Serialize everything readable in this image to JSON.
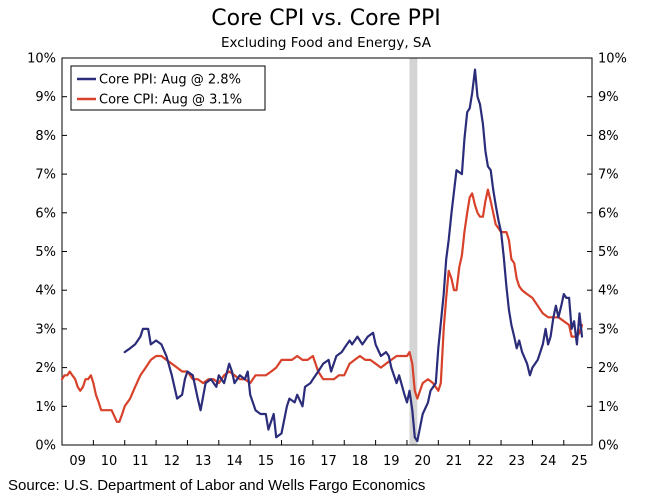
{
  "header": {
    "title": "Core CPI vs. Core PPI",
    "subtitle": "Excluding Food and Energy, SA"
  },
  "footer": {
    "source": "Source: U.S. Department of Labor and Wells Fargo Economics"
  },
  "colors": {
    "ppi": "#2b2d7a",
    "cpi": "#d8412a",
    "recession": "#d4d4d4"
  },
  "chart_data": {
    "type": "line",
    "title": "Core CPI vs. Core PPI",
    "subtitle": "Excluding Food and Energy, SA",
    "xlabel": "",
    "ylabel": "",
    "xlim": [
      2009.0,
      2025.9
    ],
    "ylim": [
      0,
      10
    ],
    "y_ticks": [
      "0%",
      "1%",
      "2%",
      "3%",
      "4%",
      "5%",
      "6%",
      "7%",
      "8%",
      "9%",
      "10%"
    ],
    "x_ticks": [
      {
        "x": 2009,
        "label": "09"
      },
      {
        "x": 2010,
        "label": "10"
      },
      {
        "x": 2011,
        "label": "11"
      },
      {
        "x": 2012,
        "label": "12"
      },
      {
        "x": 2013,
        "label": "13"
      },
      {
        "x": 2014,
        "label": "14"
      },
      {
        "x": 2015,
        "label": "15"
      },
      {
        "x": 2016,
        "label": "16"
      },
      {
        "x": 2017,
        "label": "17"
      },
      {
        "x": 2018,
        "label": "18"
      },
      {
        "x": 2019,
        "label": "19"
      },
      {
        "x": 2020,
        "label": "20"
      },
      {
        "x": 2021,
        "label": "21"
      },
      {
        "x": 2022,
        "label": "22"
      },
      {
        "x": 2023,
        "label": "23"
      },
      {
        "x": 2024,
        "label": "24"
      },
      {
        "x": 2025,
        "label": "25"
      }
    ],
    "recession_band": [
      2020.08,
      2020.33
    ],
    "legend_position": "top-left",
    "grid": false,
    "series": [
      {
        "name": "Core PPI: Aug @ 2.8%",
        "color": "#2b2d7a",
        "points": [
          [
            2011.0,
            2.4
          ],
          [
            2011.17,
            2.5
          ],
          [
            2011.33,
            2.6
          ],
          [
            2011.5,
            2.8
          ],
          [
            2011.58,
            3.0
          ],
          [
            2011.75,
            3.0
          ],
          [
            2011.83,
            2.6
          ],
          [
            2012.0,
            2.7
          ],
          [
            2012.17,
            2.6
          ],
          [
            2012.33,
            2.3
          ],
          [
            2012.5,
            1.8
          ],
          [
            2012.67,
            1.2
          ],
          [
            2012.83,
            1.3
          ],
          [
            2012.92,
            1.7
          ],
          [
            2013.0,
            1.9
          ],
          [
            2013.17,
            1.8
          ],
          [
            2013.33,
            1.2
          ],
          [
            2013.42,
            0.9
          ],
          [
            2013.58,
            1.6
          ],
          [
            2013.75,
            1.7
          ],
          [
            2013.92,
            1.5
          ],
          [
            2014.0,
            1.8
          ],
          [
            2014.17,
            1.6
          ],
          [
            2014.33,
            2.1
          ],
          [
            2014.42,
            1.9
          ],
          [
            2014.5,
            1.6
          ],
          [
            2014.67,
            1.8
          ],
          [
            2014.83,
            1.7
          ],
          [
            2014.92,
            1.9
          ],
          [
            2015.0,
            1.3
          ],
          [
            2015.17,
            0.9
          ],
          [
            2015.33,
            0.8
          ],
          [
            2015.5,
            0.8
          ],
          [
            2015.58,
            0.4
          ],
          [
            2015.75,
            0.8
          ],
          [
            2015.83,
            0.2
          ],
          [
            2016.0,
            0.3
          ],
          [
            2016.17,
            1.0
          ],
          [
            2016.25,
            1.2
          ],
          [
            2016.42,
            1.1
          ],
          [
            2016.5,
            1.3
          ],
          [
            2016.67,
            1.0
          ],
          [
            2016.75,
            1.5
          ],
          [
            2016.92,
            1.6
          ],
          [
            2017.0,
            1.7
          ],
          [
            2017.17,
            1.9
          ],
          [
            2017.33,
            2.1
          ],
          [
            2017.5,
            2.2
          ],
          [
            2017.58,
            1.9
          ],
          [
            2017.75,
            2.3
          ],
          [
            2017.92,
            2.4
          ],
          [
            2018.0,
            2.5
          ],
          [
            2018.17,
            2.7
          ],
          [
            2018.25,
            2.6
          ],
          [
            2018.42,
            2.8
          ],
          [
            2018.58,
            2.6
          ],
          [
            2018.75,
            2.8
          ],
          [
            2018.92,
            2.9
          ],
          [
            2019.0,
            2.6
          ],
          [
            2019.17,
            2.3
          ],
          [
            2019.33,
            2.4
          ],
          [
            2019.42,
            2.3
          ],
          [
            2019.5,
            2.0
          ],
          [
            2019.67,
            1.6
          ],
          [
            2019.75,
            1.8
          ],
          [
            2019.92,
            1.3
          ],
          [
            2020.0,
            1.1
          ],
          [
            2020.08,
            1.4
          ],
          [
            2020.17,
            0.9
          ],
          [
            2020.25,
            0.2
          ],
          [
            2020.33,
            0.1
          ],
          [
            2020.5,
            0.8
          ],
          [
            2020.67,
            1.1
          ],
          [
            2020.75,
            1.4
          ],
          [
            2020.92,
            1.6
          ],
          [
            2021.0,
            2.5
          ],
          [
            2021.17,
            3.9
          ],
          [
            2021.25,
            4.8
          ],
          [
            2021.33,
            5.3
          ],
          [
            2021.42,
            6.0
          ],
          [
            2021.58,
            7.1
          ],
          [
            2021.75,
            7.0
          ],
          [
            2021.83,
            7.9
          ],
          [
            2021.92,
            8.6
          ],
          [
            2022.0,
            8.7
          ],
          [
            2022.08,
            9.1
          ],
          [
            2022.17,
            9.7
          ],
          [
            2022.25,
            9.0
          ],
          [
            2022.33,
            8.8
          ],
          [
            2022.42,
            8.3
          ],
          [
            2022.5,
            7.6
          ],
          [
            2022.58,
            7.2
          ],
          [
            2022.67,
            7.1
          ],
          [
            2022.75,
            6.6
          ],
          [
            2022.83,
            6.2
          ],
          [
            2022.92,
            5.8
          ],
          [
            2023.0,
            5.5
          ],
          [
            2023.08,
            4.9
          ],
          [
            2023.17,
            4.1
          ],
          [
            2023.25,
            3.5
          ],
          [
            2023.33,
            3.1
          ],
          [
            2023.42,
            2.8
          ],
          [
            2023.5,
            2.5
          ],
          [
            2023.58,
            2.7
          ],
          [
            2023.67,
            2.4
          ],
          [
            2023.83,
            2.1
          ],
          [
            2023.92,
            1.8
          ],
          [
            2024.0,
            2.0
          ],
          [
            2024.17,
            2.2
          ],
          [
            2024.25,
            2.4
          ],
          [
            2024.33,
            2.6
          ],
          [
            2024.42,
            3.0
          ],
          [
            2024.5,
            2.6
          ],
          [
            2024.58,
            2.8
          ],
          [
            2024.67,
            3.3
          ],
          [
            2024.75,
            3.6
          ],
          [
            2024.83,
            3.3
          ],
          [
            2024.92,
            3.6
          ],
          [
            2025.0,
            3.9
          ],
          [
            2025.08,
            3.8
          ],
          [
            2025.17,
            3.8
          ],
          [
            2025.25,
            3.0
          ],
          [
            2025.33,
            3.2
          ],
          [
            2025.42,
            2.6
          ],
          [
            2025.5,
            3.4
          ],
          [
            2025.58,
            2.8
          ]
        ]
      },
      {
        "name": "Core CPI: Aug @ 3.1%",
        "color": "#d8412a",
        "points": [
          [
            2009.0,
            1.7
          ],
          [
            2009.08,
            1.8
          ],
          [
            2009.17,
            1.8
          ],
          [
            2009.25,
            1.9
          ],
          [
            2009.33,
            1.8
          ],
          [
            2009.42,
            1.7
          ],
          [
            2009.5,
            1.5
          ],
          [
            2009.58,
            1.4
          ],
          [
            2009.67,
            1.5
          ],
          [
            2009.75,
            1.7
          ],
          [
            2009.83,
            1.7
          ],
          [
            2009.92,
            1.8
          ],
          [
            2010.0,
            1.6
          ],
          [
            2010.08,
            1.3
          ],
          [
            2010.17,
            1.1
          ],
          [
            2010.25,
            0.9
          ],
          [
            2010.42,
            0.9
          ],
          [
            2010.58,
            0.9
          ],
          [
            2010.75,
            0.6
          ],
          [
            2010.83,
            0.6
          ],
          [
            2010.92,
            0.8
          ],
          [
            2011.0,
            1.0
          ],
          [
            2011.17,
            1.2
          ],
          [
            2011.33,
            1.5
          ],
          [
            2011.5,
            1.8
          ],
          [
            2011.67,
            2.0
          ],
          [
            2011.83,
            2.2
          ],
          [
            2012.0,
            2.3
          ],
          [
            2012.17,
            2.3
          ],
          [
            2012.33,
            2.2
          ],
          [
            2012.5,
            2.1
          ],
          [
            2012.67,
            2.0
          ],
          [
            2012.83,
            1.9
          ],
          [
            2013.0,
            1.9
          ],
          [
            2013.17,
            1.7
          ],
          [
            2013.33,
            1.7
          ],
          [
            2013.5,
            1.6
          ],
          [
            2013.67,
            1.7
          ],
          [
            2013.83,
            1.7
          ],
          [
            2014.0,
            1.6
          ],
          [
            2014.17,
            1.8
          ],
          [
            2014.33,
            1.9
          ],
          [
            2014.5,
            1.8
          ],
          [
            2014.67,
            1.7
          ],
          [
            2014.83,
            1.7
          ],
          [
            2015.0,
            1.6
          ],
          [
            2015.17,
            1.8
          ],
          [
            2015.33,
            1.8
          ],
          [
            2015.5,
            1.8
          ],
          [
            2015.67,
            1.9
          ],
          [
            2015.83,
            2.0
          ],
          [
            2016.0,
            2.2
          ],
          [
            2016.17,
            2.2
          ],
          [
            2016.33,
            2.2
          ],
          [
            2016.5,
            2.3
          ],
          [
            2016.67,
            2.2
          ],
          [
            2016.83,
            2.2
          ],
          [
            2017.0,
            2.3
          ],
          [
            2017.17,
            1.9
          ],
          [
            2017.33,
            1.7
          ],
          [
            2017.5,
            1.7
          ],
          [
            2017.67,
            1.7
          ],
          [
            2017.83,
            1.8
          ],
          [
            2018.0,
            1.8
          ],
          [
            2018.17,
            2.1
          ],
          [
            2018.33,
            2.2
          ],
          [
            2018.5,
            2.3
          ],
          [
            2018.67,
            2.2
          ],
          [
            2018.83,
            2.2
          ],
          [
            2019.0,
            2.1
          ],
          [
            2019.17,
            2.0
          ],
          [
            2019.33,
            2.1
          ],
          [
            2019.5,
            2.2
          ],
          [
            2019.67,
            2.3
          ],
          [
            2019.83,
            2.3
          ],
          [
            2020.0,
            2.3
          ],
          [
            2020.08,
            2.4
          ],
          [
            2020.17,
            2.1
          ],
          [
            2020.25,
            1.4
          ],
          [
            2020.33,
            1.2
          ],
          [
            2020.5,
            1.6
          ],
          [
            2020.67,
            1.7
          ],
          [
            2020.83,
            1.6
          ],
          [
            2021.0,
            1.4
          ],
          [
            2021.08,
            1.6
          ],
          [
            2021.17,
            3.0
          ],
          [
            2021.25,
            3.8
          ],
          [
            2021.33,
            4.5
          ],
          [
            2021.42,
            4.3
          ],
          [
            2021.5,
            4.0
          ],
          [
            2021.58,
            4.0
          ],
          [
            2021.67,
            4.6
          ],
          [
            2021.75,
            4.9
          ],
          [
            2021.83,
            5.5
          ],
          [
            2021.92,
            6.0
          ],
          [
            2022.0,
            6.4
          ],
          [
            2022.08,
            6.5
          ],
          [
            2022.17,
            6.2
          ],
          [
            2022.25,
            6.0
          ],
          [
            2022.33,
            5.9
          ],
          [
            2022.42,
            5.9
          ],
          [
            2022.5,
            6.3
          ],
          [
            2022.58,
            6.6
          ],
          [
            2022.67,
            6.3
          ],
          [
            2022.75,
            6.0
          ],
          [
            2022.83,
            5.7
          ],
          [
            2022.92,
            5.6
          ],
          [
            2023.0,
            5.5
          ],
          [
            2023.17,
            5.5
          ],
          [
            2023.25,
            5.3
          ],
          [
            2023.33,
            4.8
          ],
          [
            2023.42,
            4.7
          ],
          [
            2023.5,
            4.3
          ],
          [
            2023.58,
            4.1
          ],
          [
            2023.67,
            4.0
          ],
          [
            2023.83,
            3.9
          ],
          [
            2024.0,
            3.8
          ],
          [
            2024.17,
            3.6
          ],
          [
            2024.33,
            3.4
          ],
          [
            2024.5,
            3.3
          ],
          [
            2024.67,
            3.3
          ],
          [
            2024.83,
            3.3
          ],
          [
            2025.0,
            3.2
          ],
          [
            2025.17,
            3.1
          ],
          [
            2025.25,
            2.8
          ],
          [
            2025.42,
            2.8
          ],
          [
            2025.5,
            2.9
          ],
          [
            2025.58,
            3.1
          ]
        ]
      }
    ]
  }
}
